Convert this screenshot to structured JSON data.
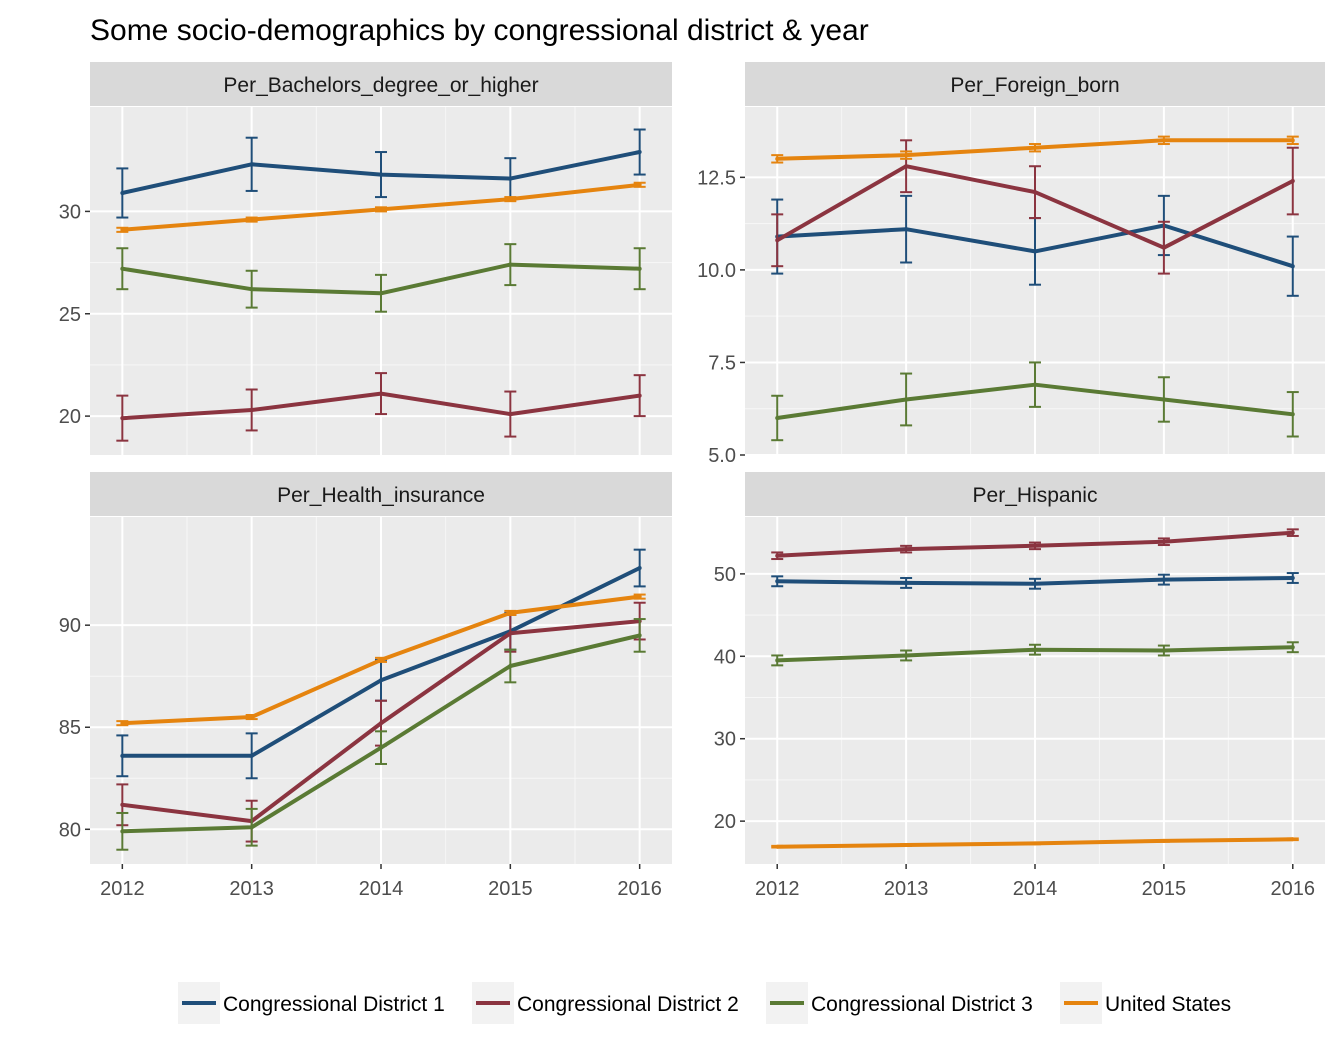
{
  "title": "Some socio-demographics by congressional district & year",
  "colors": {
    "panel_bg": "#ebebeb",
    "strip_bg": "#d9d9d9",
    "grid_major": "#ffffff",
    "legend_key_bg": "#f2f2f2",
    "tick_text": "#4d4d4d"
  },
  "chart_data": {
    "type": "line",
    "facet_layout": "2x2",
    "x": [
      2012,
      2013,
      2014,
      2015,
      2016
    ],
    "x_tick_labels": [
      "2012",
      "2013",
      "2014",
      "2015",
      "2016"
    ],
    "legend": {
      "placement": "bottom",
      "entries": [
        {
          "key": "cd1",
          "label": "Congressional District 1",
          "color": "#1f4e79"
        },
        {
          "key": "cd2",
          "label": "Congressional District 2",
          "color": "#8b3440"
        },
        {
          "key": "cd3",
          "label": "Congressional District 3",
          "color": "#5a7a34"
        },
        {
          "key": "us",
          "label": "United States",
          "color": "#e5840f"
        }
      ]
    },
    "panels": [
      {
        "name": "Per_Bachelors_degree_or_higher",
        "ylim": [
          18.1,
          35.1
        ],
        "y_ticks": [
          20,
          25,
          30
        ],
        "y_tick_labels": [
          "20",
          "25",
          "30"
        ],
        "series": [
          {
            "key": "cd1",
            "values": [
              30.9,
              32.3,
              31.8,
              31.6,
              32.9
            ],
            "err": [
              1.2,
              1.3,
              1.1,
              1.0,
              1.1
            ]
          },
          {
            "key": "cd2",
            "values": [
              19.9,
              20.3,
              21.1,
              20.1,
              21.0
            ],
            "err": [
              1.1,
              1.0,
              1.0,
              1.1,
              1.0
            ]
          },
          {
            "key": "cd3",
            "values": [
              27.2,
              26.2,
              26.0,
              27.4,
              27.2
            ],
            "err": [
              1.0,
              0.9,
              0.9,
              1.0,
              1.0
            ]
          },
          {
            "key": "us",
            "values": [
              29.1,
              29.6,
              30.1,
              30.6,
              31.3
            ],
            "err": [
              0.1,
              0.1,
              0.1,
              0.1,
              0.1
            ]
          }
        ]
      },
      {
        "name": "Per_Foreign_born",
        "ylim": [
          5.0,
          14.4
        ],
        "y_ticks": [
          5.0,
          7.5,
          10.0,
          12.5
        ],
        "y_tick_labels": [
          "5.0",
          "7.5",
          "10.0",
          "12.5"
        ],
        "series": [
          {
            "key": "cd1",
            "values": [
              10.9,
              11.1,
              10.5,
              11.2,
              10.1
            ],
            "err": [
              1.0,
              0.9,
              0.9,
              0.8,
              0.8
            ]
          },
          {
            "key": "cd2",
            "values": [
              10.8,
              12.8,
              12.1,
              10.6,
              12.4
            ],
            "err": [
              0.7,
              0.7,
              0.7,
              0.7,
              0.9
            ]
          },
          {
            "key": "cd3",
            "values": [
              6.0,
              6.5,
              6.9,
              6.5,
              6.1
            ],
            "err": [
              0.6,
              0.7,
              0.6,
              0.6,
              0.6
            ]
          },
          {
            "key": "us",
            "values": [
              13.0,
              13.1,
              13.3,
              13.5,
              13.5
            ],
            "err": [
              0.1,
              0.1,
              0.1,
              0.1,
              0.1
            ]
          }
        ]
      },
      {
        "name": "Per_Health_insurance",
        "ylim": [
          78.3,
          95.3
        ],
        "y_ticks": [
          80,
          85,
          90
        ],
        "y_tick_labels": [
          "80",
          "85",
          "90"
        ],
        "series": [
          {
            "key": "cd1",
            "values": [
              83.6,
              83.6,
              87.3,
              89.7,
              92.8
            ],
            "err": [
              1.0,
              1.1,
              1.0,
              0.9,
              0.9
            ]
          },
          {
            "key": "cd2",
            "values": [
              81.2,
              80.4,
              85.2,
              89.6,
              90.2
            ],
            "err": [
              1.0,
              1.0,
              1.1,
              0.9,
              0.9
            ]
          },
          {
            "key": "cd3",
            "values": [
              79.9,
              80.1,
              84.0,
              88.0,
              89.5
            ],
            "err": [
              0.9,
              0.9,
              0.8,
              0.8,
              0.8
            ]
          },
          {
            "key": "us",
            "values": [
              85.2,
              85.5,
              88.3,
              90.6,
              91.4
            ],
            "err": [
              0.1,
              0.1,
              0.1,
              0.1,
              0.1
            ]
          }
        ]
      },
      {
        "name": "Per_Hispanic",
        "ylim": [
          14.8,
          56.9
        ],
        "y_ticks": [
          20,
          30,
          40,
          50
        ],
        "y_tick_labels": [
          "20",
          "30",
          "40",
          "50"
        ],
        "series": [
          {
            "key": "cd1",
            "values": [
              49.1,
              48.9,
              48.8,
              49.3,
              49.5
            ],
            "err": [
              0.6,
              0.6,
              0.6,
              0.6,
              0.6
            ]
          },
          {
            "key": "cd2",
            "values": [
              52.2,
              53.0,
              53.4,
              53.9,
              55.0
            ],
            "err": [
              0.4,
              0.4,
              0.4,
              0.4,
              0.4
            ]
          },
          {
            "key": "cd3",
            "values": [
              39.5,
              40.1,
              40.8,
              40.7,
              41.1
            ],
            "err": [
              0.6,
              0.6,
              0.6,
              0.6,
              0.6
            ]
          },
          {
            "key": "us",
            "values": [
              16.9,
              17.1,
              17.3,
              17.6,
              17.8
            ],
            "err": [
              0.1,
              0.1,
              0.1,
              0.1,
              0.1
            ]
          }
        ]
      }
    ]
  }
}
